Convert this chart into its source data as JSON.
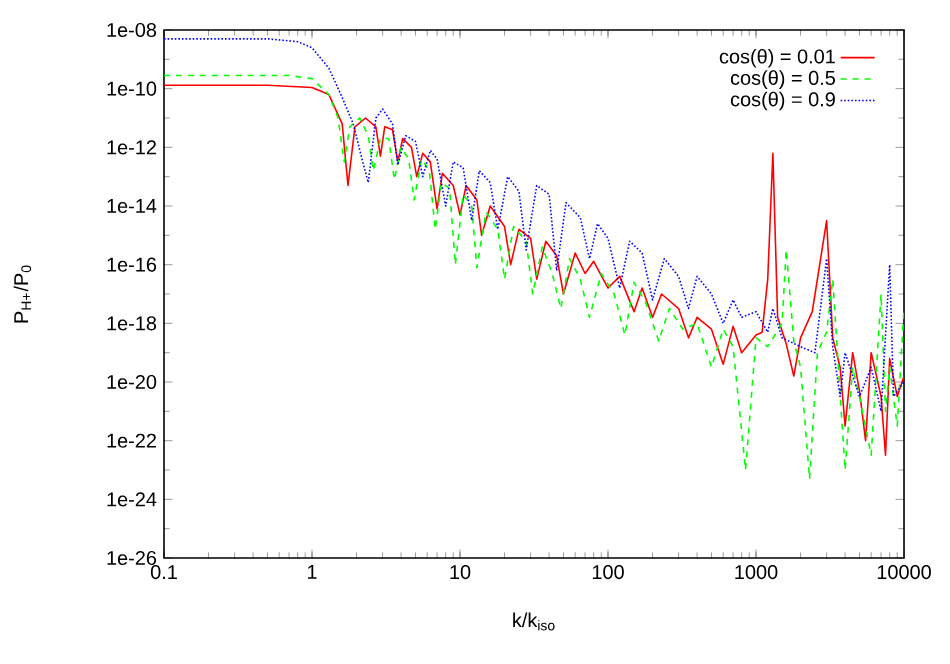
{
  "chart_data": {
    "type": "line",
    "xlabel": "k/k$_{iso}$",
    "ylabel": "P$_{H+}$/P$_{0}$",
    "log": "xy",
    "legend": "top right",
    "xlim": [
      0.1,
      10000
    ],
    "xticks": [
      0.1,
      1,
      10,
      100,
      1000,
      10000
    ],
    "ylim": [
      1e-26,
      1e-08
    ],
    "yticks": [
      {
        "value": 1e-26,
        "label": "1e-26"
      },
      {
        "value": 1e-25,
        "label": null
      },
      {
        "value": 1e-24,
        "label": "1e-24"
      },
      {
        "value": 1e-23,
        "label": null
      },
      {
        "value": 1e-22,
        "label": "1e-22"
      },
      {
        "value": 1e-21,
        "label": null
      },
      {
        "value": 1e-20,
        "label": "1e-20"
      },
      {
        "value": 1e-19,
        "label": null
      },
      {
        "value": 1e-18,
        "label": "1e-18"
      },
      {
        "value": 1e-17,
        "label": null
      },
      {
        "value": 1e-16,
        "label": "1e-16"
      },
      {
        "value": 1e-15,
        "label": null
      },
      {
        "value": 1e-14,
        "label": "1e-14"
      },
      {
        "value": 1e-13,
        "label": null
      },
      {
        "value": 1e-12,
        "label": "1e-12"
      },
      {
        "value": 1e-11,
        "label": null
      },
      {
        "value": 1e-10,
        "label": "1e-10"
      },
      {
        "value": 1e-09,
        "label": null
      },
      {
        "value": 1e-08,
        "label": "1e-08"
      }
    ],
    "series": [
      {
        "name": "cos(θ) = 0.01",
        "color": "#ff0000",
        "line_style": "solid",
        "x": [
          0.1,
          0.5,
          1,
          1.3,
          1.6,
          1.75,
          1.95,
          2.3,
          2.7,
          2.9,
          3.1,
          3.5,
          3.8,
          4.1,
          4.7,
          5.1,
          5.6,
          6.3,
          7,
          7.6,
          9,
          10,
          11,
          13,
          14,
          16,
          20,
          22,
          25,
          30,
          33,
          38,
          45,
          50,
          60,
          70,
          80,
          100,
          120,
          150,
          170,
          200,
          230,
          300,
          350,
          400,
          500,
          600,
          700,
          800,
          1000,
          1100,
          1200,
          1300,
          1400,
          1600,
          1800,
          2000,
          2400,
          3000,
          3300,
          3700,
          4000,
          4500,
          5000,
          5500,
          6000,
          7000,
          7500,
          8000,
          9000,
          10000
        ],
        "values": [
          1.3e-10,
          1.3e-10,
          1.1e-10,
          6.3e-11,
          6.3e-12,
          5e-14,
          5e-12,
          1e-11,
          5e-12,
          5e-13,
          5e-12,
          4e-12,
          3.2e-13,
          2e-12,
          1e-12,
          1e-13,
          6.3e-13,
          3.2e-13,
          7.9e-15,
          1.3e-13,
          5e-14,
          5e-15,
          5e-14,
          1.6e-14,
          1e-15,
          1e-14,
          2e-15,
          1e-16,
          1.6e-15,
          7.9e-16,
          3.2e-17,
          6.3e-16,
          2e-16,
          1e-17,
          2.5e-16,
          5e-17,
          1.3e-16,
          1.6e-17,
          4e-17,
          2.5e-18,
          1.6e-17,
          1.6e-18,
          1e-17,
          3.2e-18,
          3.2e-19,
          1.6e-18,
          6.3e-19,
          4e-20,
          7.9e-19,
          1e-19,
          4e-19,
          5e-19,
          3.2e-17,
          6.3e-13,
          1.6e-18,
          2e-19,
          1.6e-20,
          3.2e-19,
          2.5e-18,
          3.2e-15,
          3.2e-19,
          3.2e-20,
          3.2e-22,
          1e-19,
          5e-21,
          1e-22,
          1e-19,
          3.2e-21,
          3.2e-23,
          6.3e-20,
          3.2e-21,
          1.6e-20
        ]
      },
      {
        "name": "cos(θ) = 0.5",
        "color": "#00ff00",
        "line_style": "dashed",
        "x": [
          0.1,
          0.7,
          1,
          1.3,
          1.5,
          1.65,
          1.8,
          2.1,
          2.4,
          2.6,
          2.9,
          3.3,
          3.6,
          4,
          4.5,
          4.9,
          5.5,
          6.2,
          6.8,
          7.5,
          8.5,
          9.3,
          10.5,
          12,
          13,
          15,
          18,
          20,
          23,
          28,
          31,
          36,
          42,
          48,
          55,
          65,
          75,
          90,
          110,
          130,
          150,
          180,
          220,
          260,
          320,
          400,
          500,
          600,
          700,
          850,
          1000,
          1200,
          1500,
          1600,
          1800,
          2000,
          2300,
          2600,
          3000,
          3300,
          3600,
          4000,
          4500,
          5000,
          6000,
          7000,
          7500,
          8000,
          9000,
          10000
        ],
        "values": [
          2.8e-10,
          2.8e-10,
          2.2e-10,
          6.3e-11,
          1e-11,
          3.2e-13,
          5e-12,
          1e-11,
          2.5e-12,
          1.6e-13,
          2e-12,
          2e-12,
          7.9e-14,
          1e-12,
          4e-13,
          1.6e-14,
          4e-13,
          1.6e-13,
          1.6e-15,
          6.3e-14,
          4e-14,
          1e-16,
          2.5e-14,
          1e-14,
          7.9e-17,
          6.3e-15,
          1.6e-15,
          3.2e-17,
          2e-15,
          6.3e-16,
          1e-17,
          4e-16,
          5e-17,
          3.2e-18,
          1.6e-16,
          3.2e-17,
          1.6e-18,
          5e-17,
          1e-17,
          4e-19,
          2.5e-17,
          5e-18,
          2.5e-19,
          3.2e-18,
          6.3e-19,
          1e-18,
          3.2e-20,
          6.3e-19,
          1.6e-19,
          1e-23,
          3.2e-19,
          1.6e-19,
          1e-18,
          3.2e-16,
          2.5e-19,
          3.2e-20,
          5e-24,
          1e-19,
          5e-19,
          3.2e-17,
          3.2e-20,
          1e-23,
          3.2e-20,
          3.2e-21,
          3.2e-23,
          1e-17,
          1e-21,
          3.2e-20,
          3.2e-22,
          3.2e-18
        ]
      },
      {
        "name": "cos(θ) = 0.9",
        "color": "#0000ff",
        "line_style": "dotted",
        "x": [
          0.1,
          0.5,
          0.8,
          1,
          1.3,
          1.6,
          1.9,
          2.2,
          2.4,
          2.7,
          3,
          3.5,
          3.8,
          4.3,
          5,
          5.6,
          6.3,
          7,
          8,
          9,
          10.5,
          12,
          13.5,
          16,
          18,
          21,
          25,
          28,
          33,
          40,
          45,
          52,
          65,
          75,
          85,
          100,
          120,
          140,
          170,
          200,
          240,
          300,
          350,
          400,
          500,
          600,
          700,
          800,
          1000,
          1200,
          1300,
          1500,
          2000,
          2500,
          3000,
          3300,
          3700,
          4000,
          5000,
          6000,
          7000,
          8000,
          8500,
          10000
        ],
        "values": [
          5e-09,
          5e-09,
          4e-09,
          2.5e-09,
          5e-10,
          5e-11,
          6.3e-12,
          3.2e-13,
          6.3e-14,
          1e-11,
          2e-11,
          6.3e-12,
          2.5e-13,
          2.5e-12,
          1.6e-12,
          1e-13,
          7.9e-13,
          4e-13,
          1e-14,
          3.2e-13,
          2e-13,
          3.2e-15,
          1.6e-13,
          6.3e-14,
          1.6e-15,
          1e-13,
          3.2e-14,
          3.2e-16,
          5e-14,
          2.5e-14,
          6.3e-17,
          1.3e-14,
          4e-15,
          1.6e-16,
          2.5e-15,
          7.9e-16,
          1.6e-17,
          6.3e-16,
          2.5e-16,
          6.3e-18,
          1.6e-16,
          4e-17,
          3.2e-18,
          4e-17,
          1e-17,
          1e-18,
          6.3e-18,
          1.6e-18,
          2.5e-18,
          5e-19,
          3.2e-18,
          3.2e-19,
          1.6e-19,
          1e-19,
          1.6e-16,
          1.6e-19,
          3.2e-21,
          1e-19,
          3.2e-21,
          3.2e-20,
          1e-21,
          1e-16,
          3.2e-21,
          1e-20
        ]
      }
    ]
  }
}
